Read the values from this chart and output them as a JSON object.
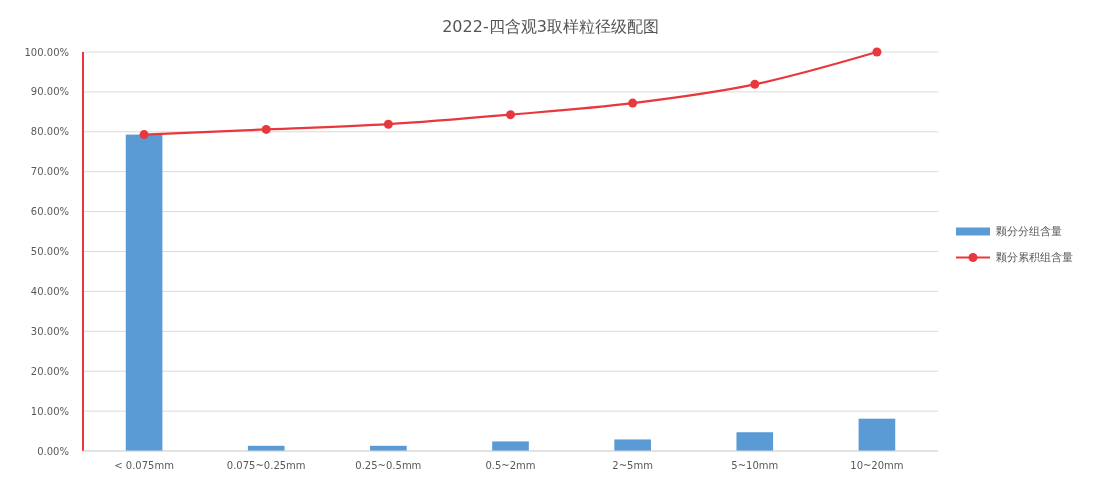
{
  "chart_data": {
    "type": "bar",
    "title": "2022-四含观3取样粒径级配图",
    "categories": [
      "< 0.075mm",
      "0.075~0.25mm",
      "0.25~0.5mm",
      "0.5~2mm",
      "2~5mm",
      "5~10mm",
      "10~20mm"
    ],
    "series": [
      {
        "name": "颗分分组含量",
        "color": "#5b9bd5",
        "values": [
          79.3,
          1.3,
          1.3,
          2.4,
          2.9,
          4.7,
          8.1
        ]
      },
      {
        "name": "颗分累积组含量",
        "type": "line",
        "color": "#e8383d",
        "values": [
          79.3,
          80.6,
          81.9,
          84.3,
          87.2,
          91.9,
          100
        ]
      }
    ],
    "ylim": [
      0,
      100
    ],
    "yticks": [
      {
        "value": 0,
        "label": "0.00%"
      },
      {
        "value": 10,
        "label": "10.00%"
      },
      {
        "value": 20,
        "label": "20.00%"
      },
      {
        "value": 30,
        "label": "30.00%"
      },
      {
        "value": 40,
        "label": "40.00%"
      },
      {
        "value": 50,
        "label": "50.00%"
      },
      {
        "value": 60,
        "label": "60.00%"
      },
      {
        "value": 70,
        "label": "70.00%"
      },
      {
        "value": 80,
        "label": "80.00%"
      },
      {
        "value": 90,
        "label": "90.00%"
      },
      {
        "value": 100,
        "label": "100.00%"
      }
    ],
    "grid": "y",
    "legend": "right",
    "marker": "circle"
  }
}
